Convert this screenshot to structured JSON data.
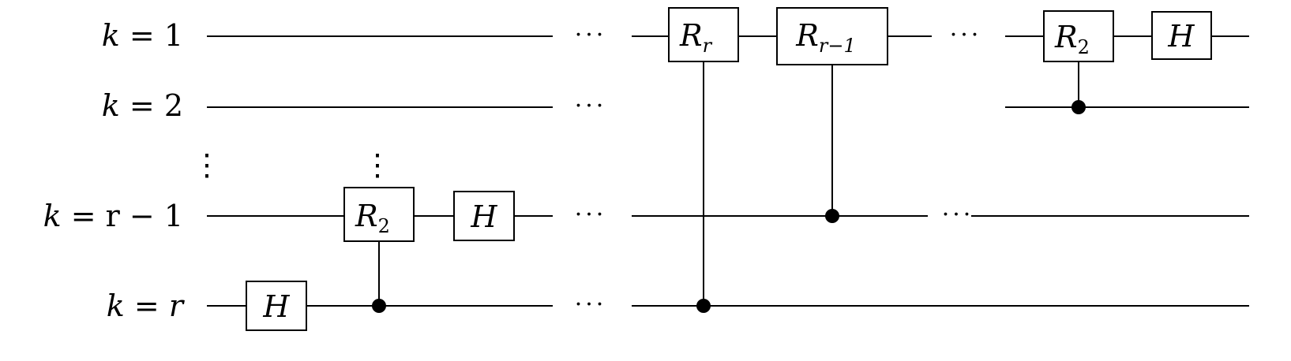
{
  "qubits": [
    {
      "name": "k-eq-1",
      "prefix": "k",
      "rel": " = ",
      "suffix": "1"
    },
    {
      "name": "k-eq-2",
      "prefix": "k",
      "rel": " = ",
      "suffix": "2"
    },
    {
      "name": "k-eq-r-minus-1",
      "prefix": "k",
      "rel": " = ",
      "suffix": "r − 1"
    },
    {
      "name": "k-eq-r",
      "prefix": "k",
      "rel": " = ",
      "suffix": "r"
    }
  ],
  "gates": {
    "h": "H",
    "r2": {
      "base": "R",
      "sub": "2"
    },
    "rr": {
      "base": "R",
      "sub": "r"
    },
    "rr1": {
      "base": "R",
      "sub": "r−1"
    }
  },
  "ellipsis": "···",
  "vdots": "⋮"
}
